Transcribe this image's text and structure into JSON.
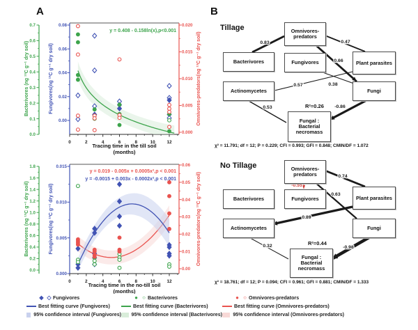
{
  "figure": {
    "panel_a_label": "A",
    "panel_b_label": "B"
  },
  "colors": {
    "blue": "#4153b4",
    "green": "#3da44c",
    "red": "#e9534f",
    "blue_ci": "#c9d1ee",
    "green_ci": "#d9edda",
    "red_ci": "#f8d9d7",
    "sem_line": "#1a1a1a",
    "sem_negative_red": "#d03a35"
  },
  "legend": {
    "columns": [
      {
        "color": "blue",
        "marker_filled": "◆",
        "marker_open": "◇",
        "series_label": "Fungivores",
        "curve_label": "Best fitting curve (Fungivores)",
        "ci_label": "95% confidence interval (Fungivores)"
      },
      {
        "color": "green",
        "marker_filled": "●",
        "marker_open": "○",
        "series_label": "Bacterivores",
        "curve_label": "Best fitting curve (Bacterivores)",
        "ci_label": "95% confidence interval (Bacterivores)"
      },
      {
        "color": "red",
        "marker_filled": "●",
        "marker_open": "○",
        "series_label": "Omnivores-predators",
        "curve_label": "Best fitting curve (Omnivores-predators)",
        "ci_label": "95% confidence interval (Omnivores-predators)"
      }
    ]
  },
  "chart_data": [
    {
      "type": "scatter",
      "xlabel_lines": [
        "Tracing time in the till soil",
        "(months)"
      ],
      "x_ticks": [
        0,
        2,
        4,
        6,
        8,
        10,
        12
      ],
      "x_range": [
        0,
        13.2
      ],
      "axes": [
        {
          "id": "green",
          "label": "Bacterivores (ng ¹³C g⁻¹ dry soil)",
          "range": [
            0.0,
            0.7
          ],
          "ticks": [
            "0.0",
            "0.1",
            "0.2",
            "0.3",
            "0.4",
            "0.5",
            "0.6",
            "0.7"
          ]
        },
        {
          "id": "blue",
          "label": "Fungivores(ng ¹³C g⁻¹ dry soil)",
          "range": [
            0.0,
            0.08
          ],
          "ticks": [
            "0.00",
            "0.02",
            "0.04",
            "0.06",
            "0.08"
          ]
        },
        {
          "id": "red",
          "label": "Omnivores-predators(ng ¹³C g⁻¹ dry soil)",
          "range": [
            0.0,
            0.02
          ],
          "ticks": [
            "0.000",
            "0.005",
            "0.010",
            "0.015",
            "0.020"
          ]
        }
      ],
      "equations": [
        {
          "text": "y = 0.408 - 0.158ln(x),p<0.001",
          "color": "green"
        }
      ],
      "curves": [
        {
          "axis": "green",
          "type": "log",
          "a": 0.408,
          "b": -0.158,
          "x_from": 1,
          "x_to": 12.6
        }
      ],
      "series": [
        {
          "name": "Fungivores",
          "axis": "blue",
          "marker": "diamond",
          "points": [
            [
              1,
              0.021,
              0
            ],
            [
              1,
              0.001,
              0
            ],
            [
              3,
              0.071,
              0
            ],
            [
              3,
              0.042,
              0
            ],
            [
              3,
              0.012,
              0
            ],
            [
              3,
              0.005,
              1
            ],
            [
              6,
              0.016,
              0
            ],
            [
              6,
              0.013,
              0
            ],
            [
              6,
              0.01,
              1
            ],
            [
              12,
              0.029,
              0
            ],
            [
              12,
              0.019,
              0
            ],
            [
              12,
              0.017,
              1
            ],
            [
              12,
              0.005,
              0
            ],
            [
              12,
              0.002,
              0
            ]
          ]
        },
        {
          "name": "Bacterivores",
          "axis": "green",
          "marker": "circle",
          "points": [
            [
              1,
              0.64,
              1
            ],
            [
              1,
              0.59,
              1
            ],
            [
              1,
              0.38,
              1
            ],
            [
              1,
              0.35,
              1
            ],
            [
              3,
              0.16,
              1
            ],
            [
              3,
              0.12,
              1
            ],
            [
              3,
              0.1,
              0
            ],
            [
              6,
              0.19,
              1
            ],
            [
              6,
              0.13,
              1
            ],
            [
              6,
              0.06,
              1
            ],
            [
              12,
              0.13,
              1
            ],
            [
              12,
              0.09,
              0
            ],
            [
              12,
              0.02,
              1
            ]
          ]
        },
        {
          "name": "Omnivores-predators",
          "axis": "red",
          "marker": "circle",
          "points": [
            [
              1,
              0.0198,
              0
            ],
            [
              1,
              0.0145,
              0
            ],
            [
              1,
              0.0031,
              0
            ],
            [
              1,
              0.0005,
              0
            ],
            [
              3,
              0.0031,
              0
            ],
            [
              3,
              0.0026,
              0
            ],
            [
              3,
              0.0004,
              0
            ],
            [
              6,
              0.0136,
              0
            ],
            [
              6,
              0.0032,
              0
            ],
            [
              6,
              0.0027,
              0
            ],
            [
              12,
              0.0051,
              0
            ],
            [
              12,
              0.0044,
              0
            ],
            [
              12,
              0.0038,
              0
            ],
            [
              12,
              0.001,
              0
            ]
          ]
        }
      ]
    },
    {
      "type": "scatter",
      "xlabel_lines": [
        "Tracing time in the no-till soil",
        "(months)"
      ],
      "x_ticks": [
        0,
        2,
        4,
        6,
        8,
        10,
        12
      ],
      "x_range": [
        0,
        13.2
      ],
      "axes": [
        {
          "id": "green",
          "label": "Bacterivores (ng ¹³C g⁻¹ dry soil)",
          "range": [
            0.0,
            1.8
          ],
          "ticks": [
            "0.0",
            "0.2",
            "0.4",
            "0.6",
            "0.8",
            "1.0",
            "1.2",
            "1.4",
            "1.6",
            "1.8"
          ]
        },
        {
          "id": "blue",
          "label": "Fungivores(ng ¹³C g⁻¹ dry soil)",
          "range": [
            0.0,
            0.015
          ],
          "ticks": [
            "0.000",
            "0.005",
            "0.010",
            "0.015"
          ]
        },
        {
          "id": "red",
          "label": "Omnivores-predators(ng ¹³C g⁻¹ dry soil)",
          "range": [
            0.0,
            0.06
          ],
          "ticks": [
            "0.00",
            "0.01",
            "0.02",
            "0.03",
            "0.04",
            "0.05",
            "0.06"
          ]
        }
      ],
      "equations": [
        {
          "text": "y = 0.019 - 0.005x + 0.0005x²,p < 0.001",
          "color": "red"
        },
        {
          "text": "y = -0.0015 + 0.003x - 0.0002x²,p < 0.001",
          "color": "blue"
        }
      ],
      "curves": [
        {
          "axis": "red",
          "type": "poly2",
          "a": 0.019,
          "b": -0.005,
          "c": 0.0005,
          "x_from": 1,
          "x_to": 12
        },
        {
          "axis": "blue",
          "type": "poly2",
          "a": -0.0015,
          "b": 0.003,
          "c": -0.0002,
          "x_from": 1,
          "x_to": 12
        }
      ],
      "series": [
        {
          "name": "Fungivores",
          "axis": "blue",
          "marker": "diamond",
          "points": [
            [
              1,
              0.0035,
              1
            ],
            [
              1,
              0.0013,
              1
            ],
            [
              1,
              0.0008,
              1
            ],
            [
              3,
              0.0063,
              1
            ],
            [
              3,
              0.0057,
              1
            ],
            [
              3,
              0.0028,
              1
            ],
            [
              3,
              0.0022,
              1
            ],
            [
              3,
              0.0013,
              1
            ],
            [
              6,
              0.0125,
              1
            ],
            [
              6,
              0.0101,
              1
            ],
            [
              6,
              0.008,
              1
            ],
            [
              6,
              0.0067,
              1
            ],
            [
              12,
              0.004,
              1
            ],
            [
              12,
              0.0037,
              1
            ],
            [
              12,
              0.0028,
              1
            ],
            [
              12,
              0.0025,
              1
            ]
          ]
        },
        {
          "name": "Bacterivores",
          "axis": "green",
          "marker": "circle",
          "points": [
            [
              1,
              1.46,
              0
            ],
            [
              1,
              0.18,
              0
            ],
            [
              1,
              0.14,
              0
            ],
            [
              3,
              0.22,
              0
            ],
            [
              3,
              0.16,
              0
            ],
            [
              3,
              0.1,
              0
            ],
            [
              6,
              0.28,
              0
            ],
            [
              6,
              0.22,
              0
            ],
            [
              6,
              0.18,
              0
            ],
            [
              6,
              0.04,
              0
            ],
            [
              12,
              0.1,
              0
            ],
            [
              12,
              0.06,
              0
            ]
          ]
        },
        {
          "name": "Omnivores-predators",
          "axis": "red",
          "marker": "circle",
          "points": [
            [
              1,
              0.017,
              1
            ],
            [
              1,
              0.016,
              1
            ],
            [
              1,
              0.015,
              1
            ],
            [
              1,
              0.014,
              1
            ],
            [
              3,
              0.011,
              1
            ],
            [
              3,
              0.01,
              1
            ],
            [
              3,
              0.008,
              1
            ],
            [
              3,
              0.007,
              1
            ],
            [
              6,
              0.018,
              1
            ],
            [
              6,
              0.011,
              1
            ],
            [
              6,
              0.01,
              1
            ],
            [
              12,
              0.05,
              1
            ],
            [
              12,
              0.042,
              1
            ],
            [
              12,
              0.032,
              1
            ],
            [
              12,
              0.023,
              1
            ]
          ]
        }
      ]
    }
  ],
  "sem_diagrams": [
    {
      "title": "Tillage",
      "r2": "R²=0.26",
      "stats": "χ² = 11.791; df = 12; P = 0.229; CFI = 0.993; GFI = 0.848; CMIN/DF = 1.072",
      "nodes": [
        {
          "key": "omnivores",
          "label": "Omnivores-predators"
        },
        {
          "key": "bacterivores",
          "label": "Bacterivores"
        },
        {
          "key": "fungivores",
          "label": "Fungivores"
        },
        {
          "key": "plant",
          "label": "Plant parasites"
        },
        {
          "key": "actino",
          "label": "Actinomycetes"
        },
        {
          "key": "fungi",
          "label": "Fungi"
        },
        {
          "key": "necro",
          "label": "Fungal : Bacterial necromass"
        }
      ],
      "edges": [
        {
          "from": "omnivores",
          "to": "bacterivores",
          "coef": "0.83",
          "weight": 2.8,
          "style": "solid",
          "color": "black",
          "arrow": false
        },
        {
          "from": "omnivores",
          "to": "plant",
          "coef": "0.47",
          "weight": 1.8,
          "style": "solid",
          "color": "black",
          "arrow": false
        },
        {
          "from": "omnivores",
          "to": "fungi",
          "coef": "0.66",
          "weight": 2.8,
          "style": "solid",
          "color": "black",
          "arrow": true
        },
        {
          "from": "plant",
          "to": "actino",
          "coef": "0.57",
          "weight": 1.1,
          "style": "solid",
          "color": "black",
          "arrow": false
        },
        {
          "from": "fungivores",
          "to": "fungi",
          "coef": "0.38",
          "weight": 1.1,
          "style": "solid",
          "color": "black",
          "arrow": false
        },
        {
          "from": "actino",
          "to": "necro",
          "coef": "0.53",
          "weight": 1.4,
          "style": "solid",
          "color": "black",
          "arrow": false
        },
        {
          "from": "fungi",
          "to": "necro",
          "coef": "-0.86",
          "weight": 3.2,
          "style": "solid",
          "color": "black",
          "arrow": true
        }
      ]
    },
    {
      "title": "No Tillage",
      "r2": "R²=0.44",
      "stats": "χ² = 18.761; df = 12; P = 0.094; CFI = 0.961; GFI = 0.881; CMIN/DF = 1.333",
      "nodes": [
        {
          "key": "omnivores",
          "label": "Omnivores-predators"
        },
        {
          "key": "bacterivores",
          "label": "Bacterivores"
        },
        {
          "key": "fungivores",
          "label": "Fungivores"
        },
        {
          "key": "plant",
          "label": "Plant parasites"
        },
        {
          "key": "actino",
          "label": "Actinomycetes"
        },
        {
          "key": "fungi",
          "label": "Fungi"
        },
        {
          "key": "necro",
          "label": "Fungal : Bacterial necromass"
        }
      ],
      "edges": [
        {
          "from": "omnivores",
          "to": "fungivores",
          "coef": "-0.55",
          "weight": 1.4,
          "style": "dashed",
          "color": "red",
          "arrow": true
        },
        {
          "from": "omnivores",
          "to": "plant",
          "coef": "0.74",
          "weight": 2.8,
          "style": "solid",
          "color": "black",
          "arrow": false
        },
        {
          "from": "omnivores",
          "to": "fungi",
          "coef": "0.63",
          "weight": 2.2,
          "style": "solid",
          "color": "black",
          "arrow": false
        },
        {
          "from": "plant",
          "to": "actino",
          "coef": "0.89",
          "weight": 3.2,
          "style": "solid",
          "color": "black",
          "arrow": true
        },
        {
          "from": "actino",
          "to": "necro",
          "coef": "0.32",
          "weight": 1.0,
          "style": "solid",
          "color": "black",
          "arrow": false
        },
        {
          "from": "fungi",
          "to": "necro",
          "coef": "-0.98",
          "weight": 4.5,
          "style": "solid",
          "color": "black",
          "arrow": true
        }
      ]
    }
  ]
}
